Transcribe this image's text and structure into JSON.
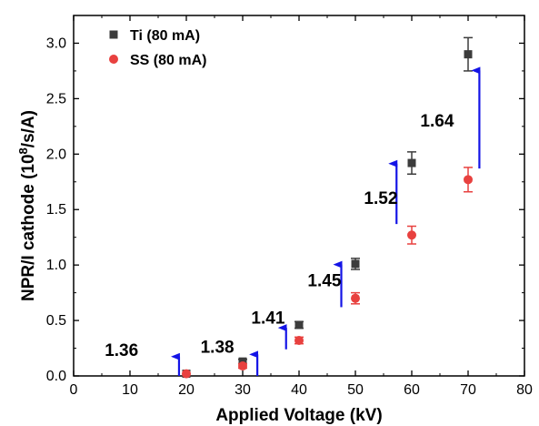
{
  "chart_data": {
    "type": "scatter",
    "title": "",
    "xlabel": "Applied Voltage (kV)",
    "ylabel_main": "NPR/I cathode (10",
    "ylabel_sup": "8",
    "ylabel_tail": "/s/A)",
    "xlim": [
      0,
      80
    ],
    "ylim": [
      0,
      3.25
    ],
    "xticks": [
      0,
      10,
      20,
      30,
      40,
      50,
      60,
      70,
      80
    ],
    "yticks": [
      0.0,
      0.5,
      1.0,
      1.5,
      2.0,
      2.5,
      3.0
    ],
    "xtick_labels": [
      "0",
      "10",
      "20",
      "30",
      "40",
      "50",
      "60",
      "70",
      "80"
    ],
    "ytick_labels": [
      "0.0",
      "0.5",
      "1.0",
      "1.5",
      "2.0",
      "2.5",
      "3.0"
    ],
    "grid": false,
    "legend_position": "top-left",
    "series": [
      {
        "name": "Ti (80 mA)",
        "marker": "square",
        "color": "#3c3c3c",
        "x": [
          20,
          30,
          40,
          50,
          60,
          70
        ],
        "y": [
          0.02,
          0.13,
          0.46,
          1.01,
          1.92,
          2.9
        ],
        "err": [
          0.01,
          0.02,
          0.03,
          0.05,
          0.1,
          0.15
        ]
      },
      {
        "name": "SS (80 mA)",
        "marker": "circle",
        "color": "#e8413f",
        "x": [
          20,
          30,
          40,
          50,
          60,
          70
        ],
        "y": [
          0.02,
          0.09,
          0.32,
          0.7,
          1.27,
          1.77
        ],
        "err": [
          0.01,
          0.02,
          0.03,
          0.05,
          0.08,
          0.11
        ]
      }
    ],
    "annotations": [
      {
        "text": "1.36",
        "x": 8.5,
        "y": 0.18,
        "arrow_x": 18.7,
        "arrow_y0": 0.0,
        "arrow_y1": 0.24
      },
      {
        "text": "1.38",
        "x": 25.5,
        "y": 0.21,
        "arrow_x": 32.6,
        "arrow_y0": 0.0,
        "arrow_y1": 0.26
      },
      {
        "text": "1.41",
        "x": 34.5,
        "y": 0.47,
        "arrow_x": 37.7,
        "arrow_y0": 0.24,
        "arrow_y1": 0.5
      },
      {
        "text": "1.45",
        "x": 44.5,
        "y": 0.81,
        "arrow_x": 47.5,
        "arrow_y0": 0.62,
        "arrow_y1": 1.07
      },
      {
        "text": "1.52",
        "x": 54.5,
        "y": 1.55,
        "arrow_x": 57.3,
        "arrow_y0": 1.37,
        "arrow_y1": 1.98
      },
      {
        "text": "1.64",
        "x": 64.5,
        "y": 2.25,
        "arrow_x": 72.0,
        "arrow_y0": 1.87,
        "arrow_y1": 2.82
      }
    ],
    "arrow_color": "#1414e6"
  }
}
